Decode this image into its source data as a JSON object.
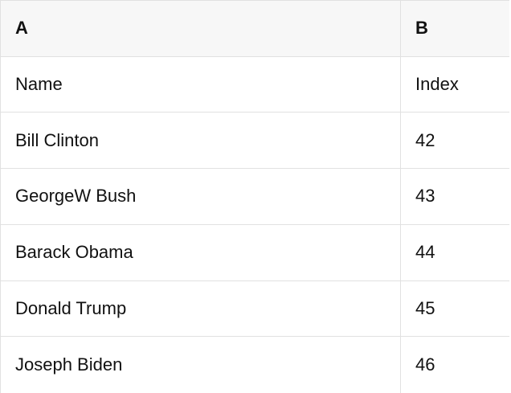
{
  "sheet": {
    "column_headers": [
      "A",
      "B"
    ],
    "rows": [
      [
        "Name",
        "Index"
      ],
      [
        "Bill Clinton",
        "42"
      ],
      [
        "GeorgeW Bush",
        "43"
      ],
      [
        "Barack Obama",
        "44"
      ],
      [
        "Donald Trump",
        "45"
      ],
      [
        "Joseph Biden",
        "46"
      ]
    ],
    "colors": {
      "header_bg": "#f7f7f7",
      "border": "#e1e1e1",
      "text": "#111111",
      "body_bg": "#ffffff"
    }
  }
}
